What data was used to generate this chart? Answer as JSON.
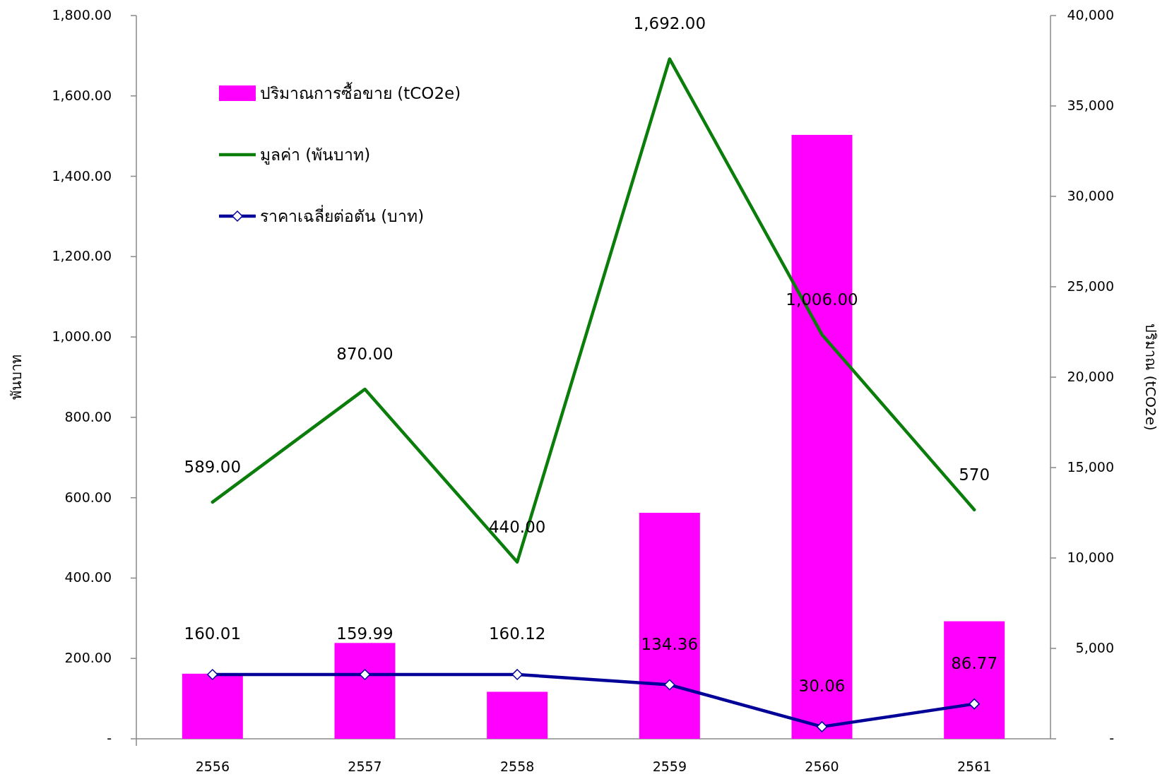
{
  "chart_data": {
    "type": "bar",
    "categories": [
      "2556",
      "2557",
      "2558",
      "2559",
      "2560",
      "2561"
    ],
    "ylabel": "พันบาท",
    "y2label": "ปริมาณ (tCO2e)",
    "ylim": [
      0,
      1800
    ],
    "yticks": [
      {
        "value": 0,
        "label": "-"
      },
      {
        "value": 200,
        "label": "200.00"
      },
      {
        "value": 400,
        "label": "400.00"
      },
      {
        "value": 600,
        "label": "600.00"
      },
      {
        "value": 800,
        "label": "800.00"
      },
      {
        "value": 1000,
        "label": "1,000.00"
      },
      {
        "value": 1200,
        "label": "1,200.00"
      },
      {
        "value": 1400,
        "label": "1,400.00"
      },
      {
        "value": 1600,
        "label": "1,600.00"
      },
      {
        "value": 1800,
        "label": "1,800.00"
      }
    ],
    "y2lim": [
      0,
      40000
    ],
    "y2ticks": [
      {
        "value": 0,
        "label": "-"
      },
      {
        "value": 5000,
        "label": "5,000"
      },
      {
        "value": 10000,
        "label": "10,000"
      },
      {
        "value": 15000,
        "label": "15,000"
      },
      {
        "value": 20000,
        "label": "20,000"
      },
      {
        "value": 25000,
        "label": "25,000"
      },
      {
        "value": 30000,
        "label": "30,000"
      },
      {
        "value": 35000,
        "label": "35,000"
      },
      {
        "value": 40000,
        "label": "40,000"
      }
    ],
    "legend": "top left",
    "grid": false,
    "series": [
      {
        "name": "ปริมาณการซื้อขาย (tCO2e)",
        "axis": "y2",
        "color": "#ff00ff",
        "values": [
          3600,
          5300,
          2600,
          12500,
          33400,
          6500
        ]
      },
      {
        "name": "มูลค่า (พันบาท)",
        "type": "line",
        "color": "#0a7d0a",
        "marker": "none",
        "values": [
          589,
          870,
          440,
          1692,
          1006,
          570
        ],
        "value_labels": [
          "589.00",
          "870.00",
          "440.00",
          "1,692.00",
          "1,006.00",
          "570"
        ]
      },
      {
        "name": "ราคาเฉลี่ยต่อตัน (บาท)",
        "type": "line",
        "color": "#000099",
        "marker": "diamond",
        "values": [
          160.01,
          159.99,
          160.12,
          134.36,
          30.06,
          86.77
        ],
        "value_labels": [
          "160.01",
          "159.99",
          "160.12",
          "134.36",
          "30.06",
          "86.77"
        ]
      }
    ]
  }
}
